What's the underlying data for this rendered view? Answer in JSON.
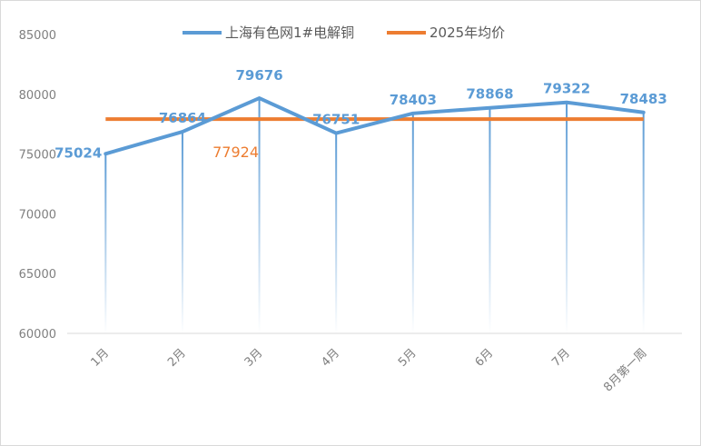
{
  "chart_data": {
    "type": "line",
    "title": "",
    "xlabel": "",
    "ylabel": "",
    "categories": [
      "1月",
      "2月",
      "3月",
      "4月",
      "5月",
      "6月",
      "7月",
      "8月第一周"
    ],
    "series": [
      {
        "name": "上海有色网1#电解铜",
        "values": [
          75024,
          76864,
          79676,
          76751,
          78403,
          78868,
          79322,
          78483
        ],
        "color": "#5b9bd5",
        "data_labels": [
          "75024",
          "76864",
          "79676",
          "76751",
          "78403",
          "78868",
          "79322",
          "78483"
        ]
      },
      {
        "name": "2025年均价",
        "values": [
          77924,
          77924,
          77924,
          77924,
          77924,
          77924,
          77924,
          77924
        ],
        "color": "#ed7d31",
        "data_labels": [
          "77924"
        ]
      }
    ],
    "ylim": [
      60000,
      85000
    ],
    "yticks": [
      60000,
      65000,
      70000,
      75000,
      80000,
      85000
    ],
    "ytick_labels": [
      "60000",
      "65000",
      "70000",
      "75000",
      "80000",
      "85000"
    ],
    "grid": false,
    "drop_lines": true,
    "legend_position": "top"
  }
}
